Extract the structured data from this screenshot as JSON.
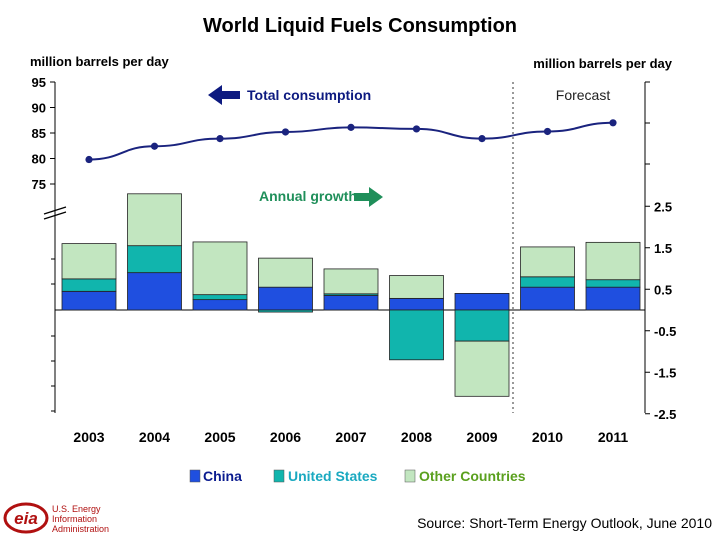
{
  "title": "World Liquid Fuels Consumption",
  "units": {
    "left": "million barrels per day",
    "right": "million barrels per day"
  },
  "forecast_label": "Forecast",
  "annotations": {
    "total": "Total consumption",
    "growth": "Annual growth"
  },
  "source": "Source: Short-Term Energy Outlook, June 2010",
  "logo": {
    "mark": "eia",
    "lines": [
      "U.S. Energy",
      "Information",
      "Administration"
    ]
  },
  "colors": {
    "line": "#1a237e",
    "china": "#1f4fe0",
    "united_states": "#11b5ad",
    "other": "#c2e6c0",
    "arrow_total": "#0d1a80",
    "arrow_growth": "#1f8f5a",
    "legend_china": "#0a1b8f",
    "legend_us": "#1aa9c0",
    "legend_other": "#5aa01e"
  },
  "chart_data": [
    {
      "type": "line",
      "series_name": "Total consumption",
      "categories": [
        "2003",
        "2004",
        "2005",
        "2006",
        "2007",
        "2008",
        "2009",
        "2010",
        "2011"
      ],
      "values": [
        79.8,
        82.4,
        83.9,
        85.2,
        86.1,
        85.8,
        83.9,
        85.3,
        87.0
      ],
      "ylim": [
        75,
        95
      ],
      "yticks": [
        "75",
        "80",
        "85",
        "90",
        "95"
      ]
    },
    {
      "type": "bar",
      "stacked": true,
      "categories": [
        "2003",
        "2004",
        "2005",
        "2006",
        "2007",
        "2008",
        "2009",
        "2010",
        "2011"
      ],
      "series": [
        {
          "name": "China",
          "values": [
            0.45,
            0.9,
            0.25,
            0.55,
            0.35,
            0.28,
            0.4,
            0.55,
            0.55
          ]
        },
        {
          "name": "United States",
          "values": [
            0.3,
            0.65,
            0.12,
            -0.05,
            0.04,
            -1.2,
            -0.75,
            0.25,
            0.18
          ]
        },
        {
          "name": "Other Countries",
          "values": [
            0.85,
            1.25,
            1.27,
            0.7,
            0.6,
            0.55,
            -1.33,
            0.72,
            0.9
          ]
        }
      ],
      "ylim": [
        -2.5,
        2.5
      ],
      "yticks": [
        "-2.5",
        "-1.5",
        "-0.5",
        "0.5",
        "1.5",
        "2.5"
      ],
      "forecast_from": "2010"
    }
  ],
  "legend": [
    "China",
    "United States",
    "Other Countries"
  ]
}
